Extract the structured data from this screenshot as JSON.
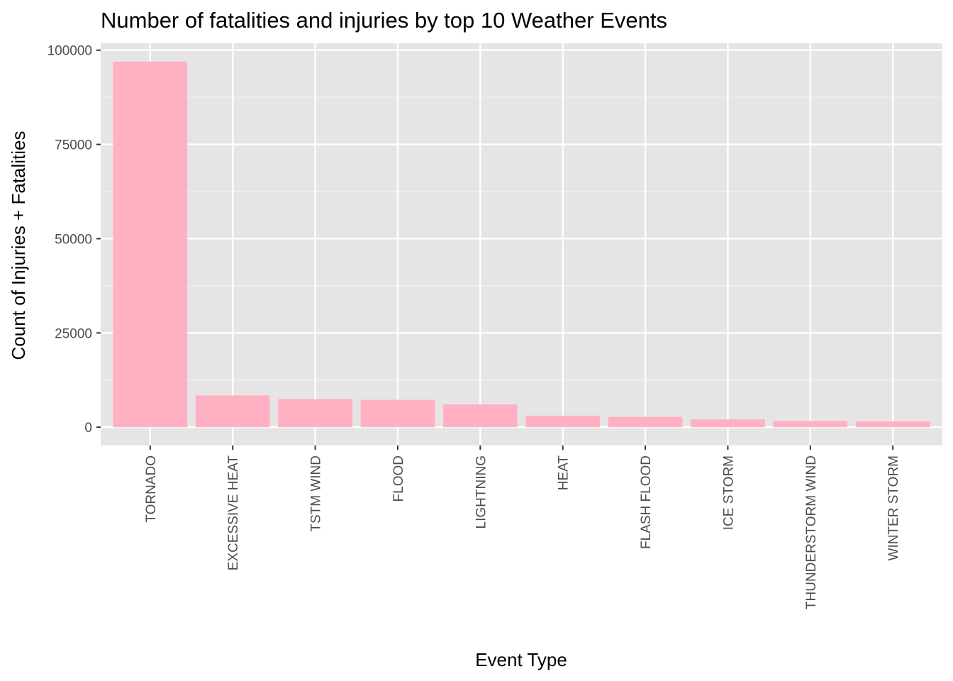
{
  "chart_data": {
    "type": "bar",
    "title": "Number of fatalities and injuries by top 10 Weather Events",
    "xlabel": "Event Type",
    "ylabel": "Count of Injuries + Fatalities",
    "categories": [
      "TORNADO",
      "EXCESSIVE HEAT",
      "TSTM WIND",
      "FLOOD",
      "LIGHTNING",
      "HEAT",
      "FLASH FLOOD",
      "ICE STORM",
      "THUNDERSTORM WIND",
      "WINTER STORM"
    ],
    "values": [
      96979,
      8428,
      7461,
      7259,
      6046,
      3037,
      2755,
      2064,
      1621,
      1527
    ],
    "yticks": [
      0,
      25000,
      50000,
      75000,
      100000
    ],
    "ytick_labels": [
      "0",
      "25000",
      "50000",
      "75000",
      "100000"
    ],
    "ylim": [
      -4850,
      101830
    ],
    "grid": true,
    "legend": "none",
    "colors": {
      "bar_fill": "#FFB1C3",
      "panel_background": "#E5E5E5",
      "grid_major": "#FFFFFF",
      "grid_minor": "#F2F2F2",
      "tick_label": "#4D4D4D",
      "tick_mark": "#333333",
      "text": "#000000"
    }
  }
}
